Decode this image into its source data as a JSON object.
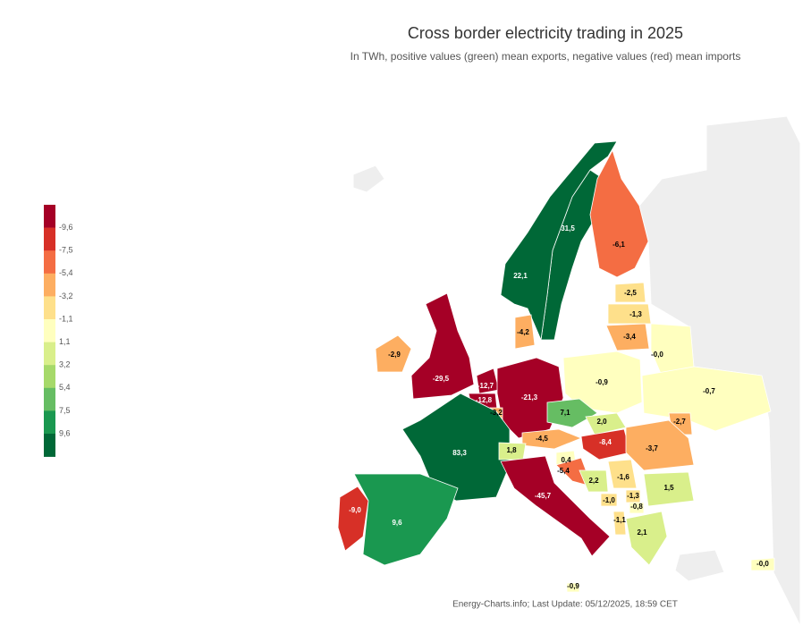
{
  "header": {
    "title": "Cross border electricity trading in 2025",
    "subtitle": "In TWh, positive values (green) mean exports, negative values (red) mean imports"
  },
  "legend": {
    "colors": [
      "#a50026",
      "#d73027",
      "#f46d43",
      "#fdae61",
      "#fee08b",
      "#ffffbf",
      "#d9ef8b",
      "#a6d96a",
      "#66bd63",
      "#1a9850",
      "#006837"
    ],
    "labels": [
      "-9,6",
      "-7,5",
      "-5,4",
      "-3,2",
      "-1,1",
      "1,1",
      "3,2",
      "5,4",
      "7,5",
      "9,6"
    ]
  },
  "regions": [
    {
      "label": "31,5",
      "color": "#006837"
    },
    {
      "label": "22,1",
      "color": "#006837"
    },
    {
      "label": "-6,1",
      "color": "#f46d43"
    },
    {
      "label": "-2,5",
      "color": "#fee08b"
    },
    {
      "label": "-1,3",
      "color": "#fee08b"
    },
    {
      "label": "-3,4",
      "color": "#fdae61"
    },
    {
      "label": "-4,2",
      "color": "#fdae61"
    },
    {
      "label": "-2,9",
      "color": "#fdae61"
    },
    {
      "label": "-29,5",
      "color": "#a50026"
    },
    {
      "label": "-0,0",
      "color": "#ffffbf"
    },
    {
      "label": "-0,9",
      "color": "#ffffbf"
    },
    {
      "label": "-0,7",
      "color": "#ffffbf"
    },
    {
      "label": "-12,7",
      "color": "#a50026"
    },
    {
      "label": "-12,8",
      "color": "#a50026"
    },
    {
      "label": "-21,3",
      "color": "#a50026"
    },
    {
      "label": "-3,2",
      "color": "#fdae61"
    },
    {
      "label": "7,1",
      "color": "#66bd63"
    },
    {
      "label": "2,0",
      "color": "#d9ef8b"
    },
    {
      "label": "-2,7",
      "color": "#fdae61"
    },
    {
      "label": "-4,5",
      "color": "#fdae61"
    },
    {
      "label": "-8,4",
      "color": "#d73027"
    },
    {
      "label": "-3,7",
      "color": "#fdae61"
    },
    {
      "label": "83,3",
      "color": "#006837"
    },
    {
      "label": "1,8",
      "color": "#d9ef8b"
    },
    {
      "label": "0,4",
      "color": "#ffffbf"
    },
    {
      "label": "-5,4",
      "color": "#f46d43"
    },
    {
      "label": "-1,6",
      "color": "#fee08b"
    },
    {
      "label": "2,2",
      "color": "#d9ef8b"
    },
    {
      "label": "1,5",
      "color": "#d9ef8b"
    },
    {
      "label": "-45,7",
      "color": "#a50026"
    },
    {
      "label": "-1,3",
      "color": "#fee08b"
    },
    {
      "label": "-1,0",
      "color": "#fee08b"
    },
    {
      "label": "-0,8",
      "color": "#ffffbf"
    },
    {
      "label": "-9,0",
      "color": "#d73027"
    },
    {
      "label": "9,6",
      "color": "#1a9850"
    },
    {
      "label": "-1,1",
      "color": "#fee08b"
    },
    {
      "label": "2,1",
      "color": "#d9ef8b"
    },
    {
      "label": "-0,0",
      "color": "#ffffbf"
    },
    {
      "label": "-0,9",
      "color": "#ffffbf"
    }
  ],
  "footer": {
    "source": "Energy-Charts.info; Last Update: 05/12/2025, 18:59 CET"
  }
}
